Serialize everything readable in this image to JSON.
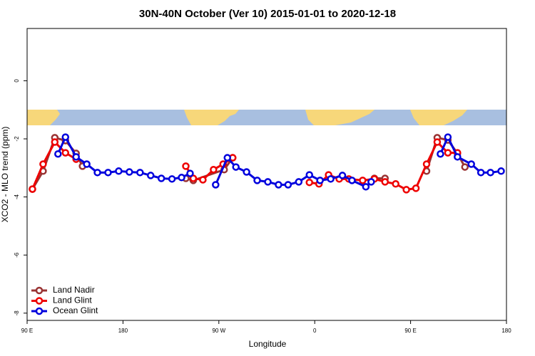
{
  "chart_data": {
    "type": "line",
    "title": "30N-40N October (Ver 10)   2015-01-01 to 2020-12-18",
    "x_label": "Longitude",
    "y_label": "XCO2 - MLO trend (ppm)",
    "xlim": [
      90,
      540
    ],
    "ylim": [
      -8.25,
      1.8
    ],
    "xticks": [
      {
        "value": 90,
        "label": "90 E"
      },
      180,
      {
        "value": 270,
        "label": "90 W"
      },
      {
        "value": 360,
        "label": "0"
      },
      {
        "value": 450,
        "label": "90 E"
      },
      {
        "value": 540,
        "label": "180"
      }
    ],
    "yticks": [
      0,
      -2,
      -4,
      -6,
      -8
    ],
    "legend": "bottom-left",
    "series": [
      {
        "name": "Land Nadir",
        "color": "#993333",
        "x": [
          95,
          105,
          116,
          126,
          136,
          142,
          null,
          239,
          246,
          275,
          283,
          null,
          416,
          426,
          null,
          465,
          475,
          485,
          494,
          501
        ],
        "values": [
          -3.73,
          -3.11,
          -1.96,
          -2.06,
          -2.5,
          -2.94,
          null,
          -3.36,
          -3.43,
          -3.06,
          -2.65,
          null,
          -3.36,
          -3.36,
          null,
          -3.11,
          -1.96,
          -2.04,
          -2.5,
          -2.97
        ]
      },
      {
        "name": "Land Glint",
        "color": "#ee0000",
        "x": [
          95,
          105,
          116,
          126,
          136,
          null,
          239,
          246,
          255,
          265,
          274,
          283,
          null,
          355,
          364,
          373,
          383,
          392,
          405,
          416,
          426,
          436,
          446,
          455,
          465,
          475,
          485,
          494
        ],
        "values": [
          -3.73,
          -2.87,
          -2.11,
          -2.48,
          -2.7,
          null,
          -2.94,
          -3.36,
          -3.41,
          -3.06,
          -2.87,
          -2.65,
          null,
          -3.5,
          -3.55,
          -3.24,
          -3.38,
          -3.38,
          -3.43,
          -3.38,
          -3.48,
          -3.55,
          -3.75,
          -3.7,
          -2.87,
          -2.11,
          -2.48,
          -2.48
        ]
      },
      {
        "name": "Ocean Glint",
        "color": "#0000dd",
        "x": [
          119,
          126,
          136,
          146,
          156,
          166,
          176,
          186,
          196,
          206,
          216,
          226,
          235,
          243,
          null,
          267,
          278,
          286,
          296,
          306,
          316,
          326,
          335,
          345,
          355,
          365,
          375,
          386,
          395,
          408,
          413,
          null,
          478,
          485,
          494,
          507,
          516,
          525,
          535
        ],
        "values": [
          -2.52,
          -1.94,
          -2.62,
          -2.87,
          -3.16,
          -3.16,
          -3.11,
          -3.14,
          -3.16,
          -3.26,
          -3.36,
          -3.38,
          -3.33,
          -3.19,
          null,
          -3.58,
          -2.65,
          -2.97,
          -3.14,
          -3.43,
          -3.48,
          -3.58,
          -3.58,
          -3.48,
          -3.24,
          -3.43,
          -3.38,
          -3.26,
          -3.43,
          -3.65,
          -3.48,
          null,
          -2.52,
          -1.94,
          -2.62,
          -2.87,
          -3.16,
          -3.16,
          -3.11
        ]
      }
    ]
  }
}
